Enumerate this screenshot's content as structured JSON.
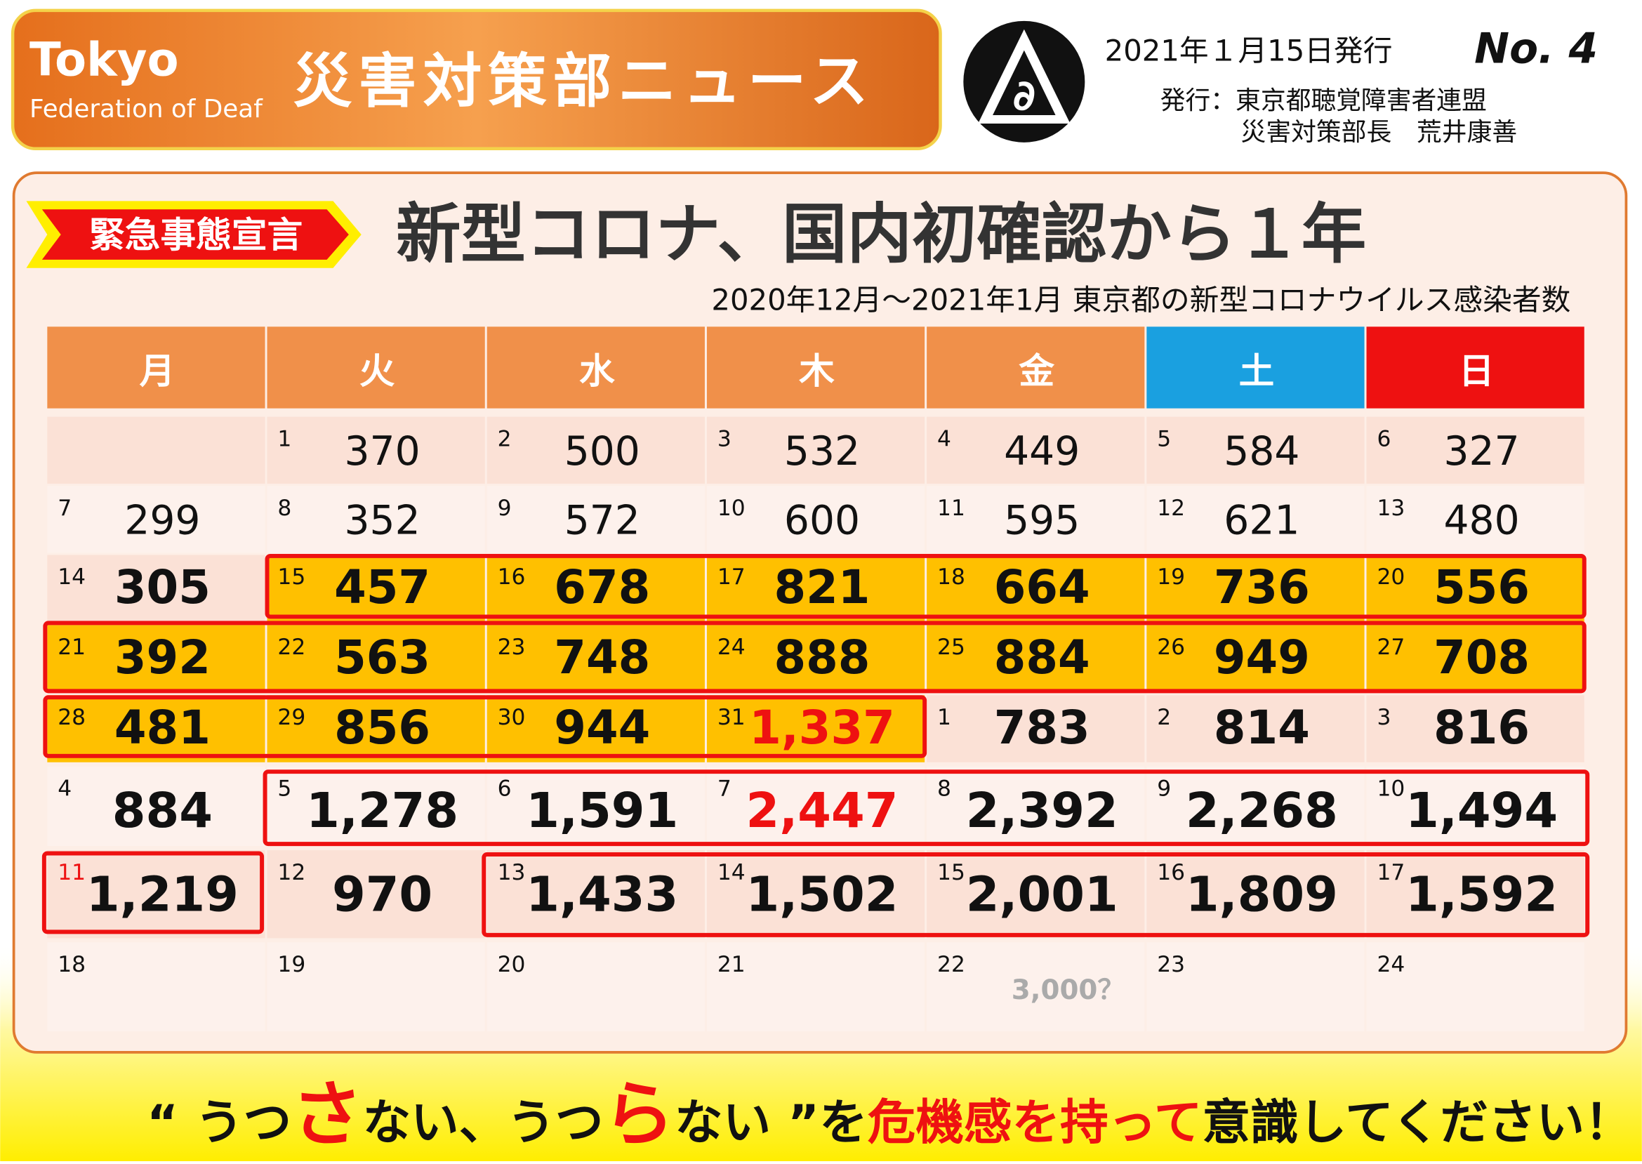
{
  "header": {
    "org": "Tokyo",
    "org_sub": "Federation of Deaf",
    "title": "災害対策部ニュース",
    "date": "2021年１月15日発行",
    "issue": "No. 4",
    "publisher": "発行：東京都聴覚障害者連盟",
    "officer": "災害対策部長　荒井康善"
  },
  "article": {
    "tag": "緊急事態宣言",
    "headline": "新型コロナ、国内初確認から１年",
    "subtitle": "2020年12月～2021年1月  東京都の新型コロナウイルス感染者数"
  },
  "table": {
    "weekdays": [
      "月",
      "火",
      "水",
      "木",
      "金",
      "土",
      "日"
    ],
    "rows": [
      [
        null,
        {
          "day": 1,
          "count": "370"
        },
        {
          "day": 2,
          "count": "500"
        },
        {
          "day": 3,
          "count": "532"
        },
        {
          "day": 4,
          "count": "449"
        },
        {
          "day": 5,
          "count": "584"
        },
        {
          "day": 6,
          "count": "327"
        }
      ],
      [
        {
          "day": 7,
          "count": "299"
        },
        {
          "day": 8,
          "count": "352"
        },
        {
          "day": 9,
          "count": "572"
        },
        {
          "day": 10,
          "count": "600"
        },
        {
          "day": 11,
          "count": "595"
        },
        {
          "day": 12,
          "count": "621"
        },
        {
          "day": 13,
          "count": "480"
        }
      ],
      [
        {
          "day": 14,
          "count": "305"
        },
        {
          "day": 15,
          "count": "457"
        },
        {
          "day": 16,
          "count": "678"
        },
        {
          "day": 17,
          "count": "821"
        },
        {
          "day": 18,
          "count": "664"
        },
        {
          "day": 19,
          "count": "736"
        },
        {
          "day": 20,
          "count": "556"
        }
      ],
      [
        {
          "day": 21,
          "count": "392"
        },
        {
          "day": 22,
          "count": "563"
        },
        {
          "day": 23,
          "count": "748"
        },
        {
          "day": 24,
          "count": "888"
        },
        {
          "day": 25,
          "count": "884"
        },
        {
          "day": 26,
          "count": "949"
        },
        {
          "day": 27,
          "count": "708"
        }
      ],
      [
        {
          "day": 28,
          "count": "481"
        },
        {
          "day": 29,
          "count": "856"
        },
        {
          "day": 30,
          "count": "944"
        },
        {
          "day": 31,
          "count": "1,337"
        },
        {
          "day": 1,
          "count": "783"
        },
        {
          "day": 2,
          "count": "814"
        },
        {
          "day": 3,
          "count": "816"
        }
      ],
      [
        {
          "day": 4,
          "count": "884"
        },
        {
          "day": 5,
          "count": "1,278"
        },
        {
          "day": 6,
          "count": "1,591"
        },
        {
          "day": 7,
          "count": "2,447"
        },
        {
          "day": 8,
          "count": "2,392"
        },
        {
          "day": 9,
          "count": "2,268"
        },
        {
          "day": 10,
          "count": "1,494"
        }
      ],
      [
        {
          "day": 11,
          "count": "1,219"
        },
        {
          "day": 12,
          "count": "970"
        },
        {
          "day": 13,
          "count": "1,433"
        },
        {
          "day": 14,
          "count": "1,502"
        },
        {
          "day": 15,
          "count": "2,001"
        },
        {
          "day": 16,
          "count": "1,809"
        },
        {
          "day": 17,
          "count": "1,592"
        }
      ],
      [
        {
          "day": 18
        },
        {
          "day": 19
        },
        {
          "day": 20
        },
        {
          "day": 21
        },
        {
          "day": 22,
          "note": "3,000？"
        },
        {
          "day": 23
        },
        {
          "day": 24
        }
      ]
    ]
  },
  "slogan": [
    "“ うつ",
    "さ",
    "ない、うつ",
    "ら",
    "ない ”を",
    "危機感を持って",
    "意識してください！"
  ]
}
